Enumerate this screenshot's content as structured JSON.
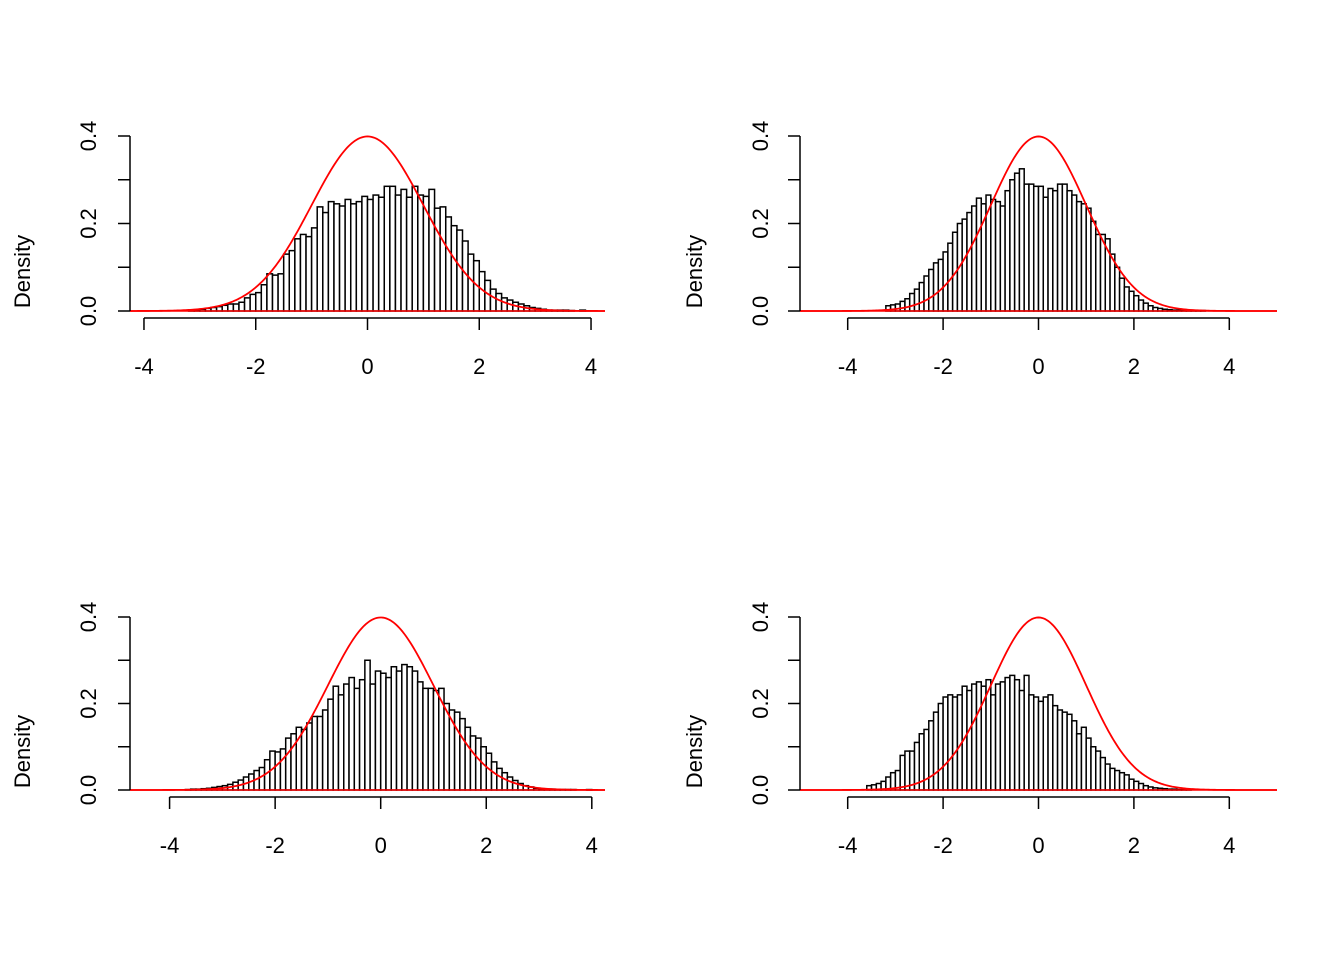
{
  "colors": {
    "curve": "#ff0000",
    "bars": "#ffffff",
    "bar_stroke": "#000000",
    "axis": "#000000"
  },
  "chart_data": [
    {
      "type": "bar",
      "subtype": "histogram_with_density_curve",
      "title": "",
      "xlabel": "",
      "ylabel": "Density",
      "xlim": [
        -4.25,
        4.25
      ],
      "ylim": [
        0,
        0.4
      ],
      "xticks": [
        -4,
        -2,
        0,
        2,
        4
      ],
      "xtick_labels": [
        "-4",
        "-2",
        "0",
        "2",
        "4"
      ],
      "yticks": [
        0,
        0.1,
        0.2,
        0.3,
        0.4
      ],
      "ytick_labels": [
        "0.0",
        "",
        "0.2",
        "",
        "0.4"
      ],
      "bin_start": -4.0,
      "bin_width": 0.1,
      "values": [
        0,
        0,
        0,
        0,
        0,
        0,
        0,
        0,
        0.002,
        0.003,
        0.004,
        0.006,
        0.008,
        0.01,
        0.013,
        0.016,
        0.016,
        0.02,
        0.03,
        0.038,
        0.042,
        0.06,
        0.085,
        0.082,
        0.085,
        0.13,
        0.138,
        0.165,
        0.175,
        0.17,
        0.19,
        0.238,
        0.225,
        0.25,
        0.245,
        0.24,
        0.255,
        0.245,
        0.25,
        0.262,
        0.255,
        0.265,
        0.26,
        0.285,
        0.285,
        0.265,
        0.278,
        0.26,
        0.285,
        0.265,
        0.262,
        0.278,
        0.235,
        0.238,
        0.215,
        0.195,
        0.185,
        0.16,
        0.13,
        0.115,
        0.09,
        0.07,
        0.05,
        0.04,
        0.03,
        0.025,
        0.02,
        0.016,
        0.012,
        0.008,
        0.006,
        0.004,
        0.002,
        0.002,
        0.002,
        0.002,
        0.001,
        0,
        0.002,
        0,
        0
      ],
      "curve": {
        "name": "",
        "type": "normal_density",
        "mean": 0,
        "sd": 1
      }
    },
    {
      "type": "bar",
      "subtype": "histogram_with_density_curve",
      "title": "",
      "xlabel": "",
      "ylabel": "Density",
      "xlim": [
        -5.0,
        5.0
      ],
      "ylim": [
        0,
        0.4
      ],
      "xticks": [
        -4,
        -2,
        0,
        2,
        4
      ],
      "xtick_labels": [
        "-4",
        "-2",
        "0",
        "2",
        "4"
      ],
      "yticks": [
        0,
        0.1,
        0.2,
        0.3,
        0.4
      ],
      "ytick_labels": [
        "0.0",
        "",
        "0.2",
        "",
        "0.4"
      ],
      "bin_start": -3.2,
      "bin_width": 0.1,
      "values": [
        0.012,
        0.014,
        0.016,
        0.022,
        0.028,
        0.04,
        0.05,
        0.065,
        0.08,
        0.095,
        0.11,
        0.118,
        0.135,
        0.155,
        0.18,
        0.2,
        0.21,
        0.225,
        0.24,
        0.258,
        0.245,
        0.265,
        0.255,
        0.25,
        0.24,
        0.275,
        0.3,
        0.315,
        0.325,
        0.29,
        0.29,
        0.285,
        0.285,
        0.26,
        0.28,
        0.275,
        0.29,
        0.29,
        0.275,
        0.265,
        0.25,
        0.245,
        0.235,
        0.205,
        0.175,
        0.175,
        0.165,
        0.13,
        0.1,
        0.075,
        0.055,
        0.045,
        0.035,
        0.025,
        0.018,
        0.012,
        0.008,
        0.006,
        0.004,
        0.003,
        0.002,
        0.002,
        0.001,
        0.002,
        0.001,
        0.001,
        0.001
      ]
    },
    {
      "type": "bar",
      "subtype": "histogram_with_density_curve",
      "title": "",
      "xlabel": "",
      "ylabel": "Density",
      "xlim": [
        -4.75,
        4.25
      ],
      "ylim": [
        0,
        0.4
      ],
      "xticks": [
        -4,
        -2,
        0,
        2,
        4
      ],
      "xtick_labels": [
        "-4",
        "-2",
        "0",
        "2",
        "4"
      ],
      "yticks": [
        0,
        0.1,
        0.2,
        0.3,
        0.4
      ],
      "ytick_labels": [
        "0.0",
        "",
        "0.2",
        "",
        "0.4"
      ],
      "bin_start": -4.4,
      "bin_width": 0.1,
      "values": [
        0,
        0,
        0,
        0,
        0,
        0,
        0,
        0.001,
        0.002,
        0.002,
        0.003,
        0.004,
        0.006,
        0.008,
        0.01,
        0.013,
        0.018,
        0.023,
        0.03,
        0.037,
        0.045,
        0.052,
        0.07,
        0.09,
        0.088,
        0.095,
        0.12,
        0.13,
        0.145,
        0.14,
        0.155,
        0.17,
        0.17,
        0.185,
        0.21,
        0.24,
        0.22,
        0.245,
        0.26,
        0.235,
        0.255,
        0.3,
        0.245,
        0.275,
        0.27,
        0.26,
        0.285,
        0.275,
        0.29,
        0.285,
        0.275,
        0.25,
        0.235,
        0.235,
        0.23,
        0.235,
        0.2,
        0.185,
        0.18,
        0.165,
        0.145,
        0.125,
        0.12,
        0.1,
        0.085,
        0.065,
        0.05,
        0.04,
        0.03,
        0.022,
        0.015,
        0.01,
        0.007,
        0.004,
        0.003,
        0.002,
        0.002,
        0.001,
        0.001,
        0.001,
        0.001,
        0,
        0,
        0.001
      ]
    },
    {
      "type": "bar",
      "subtype": "histogram_with_density_curve",
      "title": "",
      "xlabel": "",
      "ylabel": "Density",
      "xlim": [
        -5.0,
        5.0
      ],
      "ylim": [
        0,
        0.4
      ],
      "xticks": [
        -4,
        -2,
        0,
        2,
        4
      ],
      "xtick_labels": [
        "-4",
        "-2",
        "0",
        "2",
        "4"
      ],
      "yticks": [
        0,
        0.1,
        0.2,
        0.3,
        0.4
      ],
      "ytick_labels": [
        "0.0",
        "",
        "0.2",
        "",
        "0.4"
      ],
      "bin_start": -3.6,
      "bin_width": 0.1,
      "values": [
        0.01,
        0.012,
        0.015,
        0.02,
        0.03,
        0.04,
        0.045,
        0.08,
        0.09,
        0.09,
        0.11,
        0.13,
        0.14,
        0.16,
        0.18,
        0.2,
        0.215,
        0.22,
        0.215,
        0.22,
        0.24,
        0.23,
        0.245,
        0.25,
        0.24,
        0.255,
        0.22,
        0.245,
        0.25,
        0.26,
        0.265,
        0.255,
        0.23,
        0.265,
        0.22,
        0.215,
        0.205,
        0.215,
        0.22,
        0.195,
        0.185,
        0.18,
        0.175,
        0.16,
        0.13,
        0.145,
        0.12,
        0.1,
        0.09,
        0.075,
        0.06,
        0.05,
        0.045,
        0.04,
        0.035,
        0.025,
        0.02,
        0.015,
        0.01,
        0.007,
        0.005,
        0.004,
        0.003,
        0.002,
        0.002,
        0.001,
        0.001,
        0.001
      ]
    }
  ]
}
